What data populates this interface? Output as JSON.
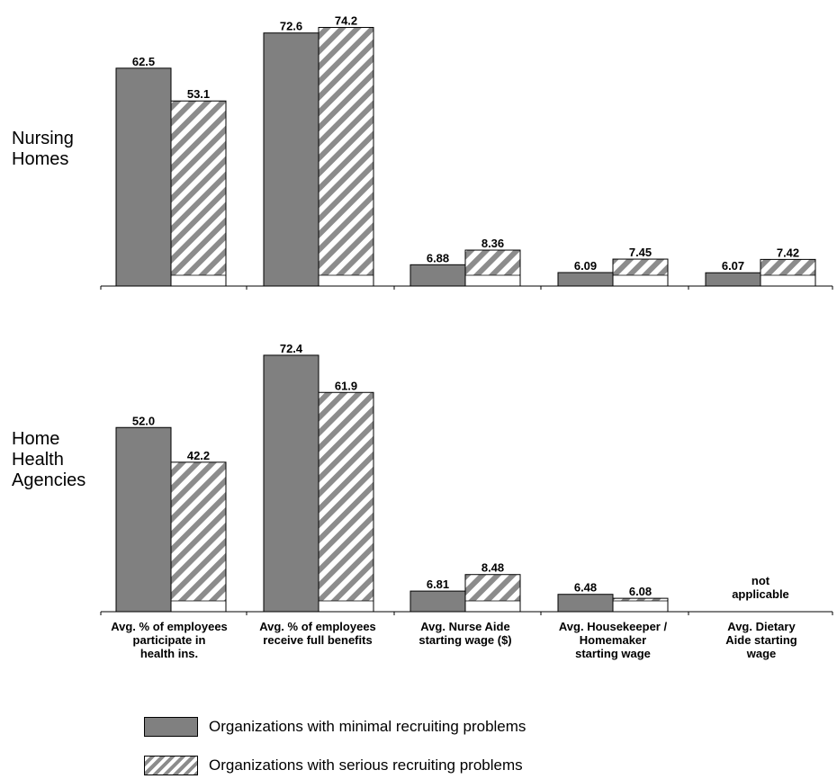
{
  "chart_data": [
    {
      "type": "bar",
      "panel": "Nursing Homes",
      "row_label": "Nursing\nHomes",
      "categories": [
        "Avg. % of employees participate in health ins.",
        "Avg. % of employees receive full benefits",
        "Avg.  Nurse Aide starting wage ($)",
        "Avg.  Housekeeper / Homemaker starting wage",
        "Avg.  Dietary Aide starting wage"
      ],
      "series": [
        {
          "name": "Organizations with minimal recruiting problems",
          "values": [
            62.5,
            72.6,
            6.88,
            6.09,
            6.07
          ],
          "labels": [
            "62.5",
            "72.6",
            "6.88",
            "6.09",
            "6.07"
          ]
        },
        {
          "name": "Organizations with serious recruiting problems",
          "values": [
            53.1,
            74.2,
            8.36,
            7.45,
            7.42
          ],
          "labels": [
            "53.1",
            "74.2",
            "8.36",
            "7.45",
            "7.42"
          ]
        }
      ],
      "grid": false
    },
    {
      "type": "bar",
      "panel": "Home Health Agencies",
      "row_label": "Home\nHealth\nAgencies",
      "categories": [
        "Avg. % of employees participate in health ins.",
        "Avg. % of employees receive full benefits",
        "Avg.  Nurse Aide starting wage ($)",
        "Avg.  Housekeeper / Homemaker starting wage",
        "Avg.  Dietary Aide starting wage"
      ],
      "series": [
        {
          "name": "Organizations with minimal recruiting problems",
          "values": [
            52.0,
            72.4,
            6.81,
            6.48,
            null
          ],
          "labels": [
            "52.0",
            "72.4",
            "6.81",
            "6.48",
            null
          ]
        },
        {
          "name": "Organizations with serious recruiting problems",
          "values": [
            42.2,
            61.9,
            8.48,
            6.08,
            null
          ],
          "labels": [
            "42.2",
            "61.9",
            "8.48",
            "6.08",
            null
          ]
        }
      ],
      "annotations": [
        {
          "category_index": 4,
          "text": "not\napplicable"
        }
      ],
      "grid": false
    }
  ],
  "category_labels": [
    "Avg. % of employees\nparticipate in\nhealth ins.",
    "Avg. % of employees\nreceive full benefits",
    "Avg.  Nurse Aide\nstarting wage ($)",
    "Avg.  Housekeeper /\nHomemaker\nstarting wage",
    "Avg.  Dietary\nAide starting\nwage"
  ],
  "legend": {
    "position": "bottom",
    "items": [
      {
        "label": "Organizations with minimal recruiting problems",
        "style": "solid"
      },
      {
        "label": "Organizations with serious recruiting problems",
        "style": "hatched"
      }
    ]
  },
  "colors": {
    "solid_bar": "#808080",
    "hatch_stripe": "#8c8c8c",
    "hatch_bg": "#ffffff",
    "outline": "#000000"
  }
}
